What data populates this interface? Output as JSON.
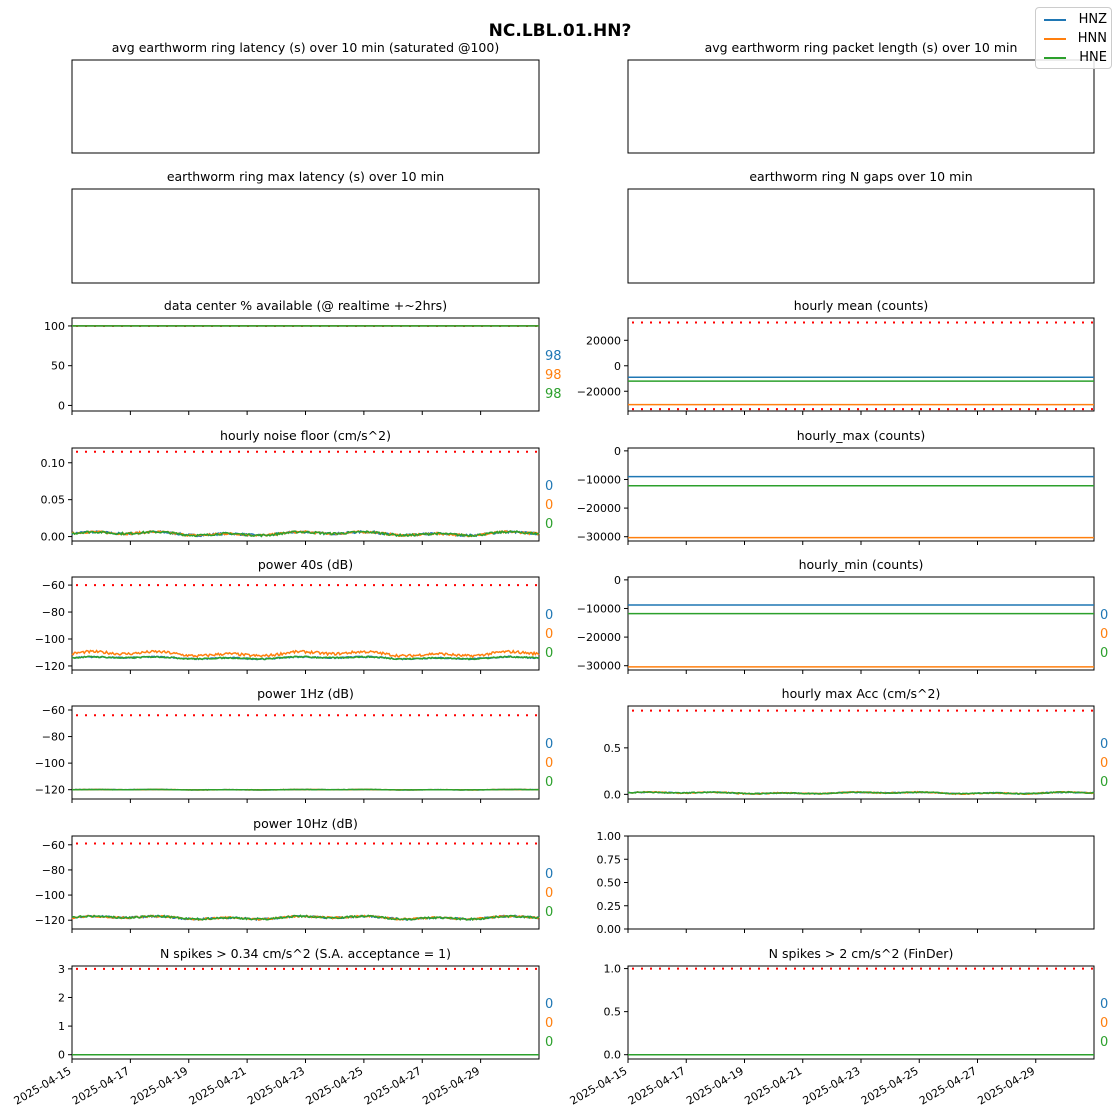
{
  "suptitle": "NC.LBL.01.HN?",
  "legend": {
    "items": [
      "HNZ",
      "HNN",
      "HNE"
    ]
  },
  "colors": {
    "HNZ": "#1f77b4",
    "HNN": "#ff7f0e",
    "HNE": "#2ca02c",
    "threshold": "#ff0000"
  },
  "chart_data": [
    {
      "type": "line",
      "title": "avg earthworm ring latency (s)   over 10 min (saturated @100)",
      "empty": true,
      "series": []
    },
    {
      "type": "line",
      "title": "avg earthworm ring packet length (s)   over 10 min",
      "empty": true,
      "series": []
    },
    {
      "type": "line",
      "title": "earthworm ring max latency (s)   over 10 min",
      "empty": true,
      "series": []
    },
    {
      "type": "line",
      "title": "earthworm ring N gaps   over 10 min",
      "empty": true,
      "series": []
    },
    {
      "type": "line",
      "title": "data center % available (@ realtime +~2hrs)",
      "ylim": [
        -7,
        110
      ],
      "yticks": [
        "0",
        "50",
        "100"
      ],
      "yticks_values": [
        0,
        50,
        100
      ],
      "thresholds": [
        100
      ],
      "series": [
        {
          "name": "HNZ",
          "level": 100,
          "noise": 0
        },
        {
          "name": "HNN",
          "level": 100,
          "noise": 0
        },
        {
          "name": "HNE",
          "level": 100,
          "noise": 0
        }
      ],
      "side_labels": [
        "98",
        "98",
        "98"
      ]
    },
    {
      "type": "line",
      "title": "hourly mean (counts)",
      "ylim": [
        -35500,
        37500
      ],
      "yticks": [
        "−20000",
        "0",
        "20000"
      ],
      "yticks_values": [
        -20000,
        0,
        20000
      ],
      "thresholds": [
        34000,
        -34000
      ],
      "series": [
        {
          "name": "HNZ",
          "level": -9000,
          "noise": 0
        },
        {
          "name": "HNN",
          "level": -30500,
          "noise": 0
        },
        {
          "name": "HNE",
          "level": -12000,
          "noise": 0
        }
      ],
      "side_labels": []
    },
    {
      "type": "line",
      "title": "hourly noise floor (cm/s^2)",
      "ylim": [
        -0.006,
        0.12
      ],
      "yticks": [
        "0.00",
        "0.05",
        "0.10"
      ],
      "yticks_values": [
        0,
        0.05,
        0.1
      ],
      "thresholds": [
        0.115
      ],
      "series": [
        {
          "name": "HNZ",
          "level": 0.004,
          "noise": 0.003
        },
        {
          "name": "HNN",
          "level": 0.004,
          "noise": 0.003
        },
        {
          "name": "HNE",
          "level": 0.004,
          "noise": 0.003
        }
      ],
      "side_labels": [
        "0",
        "0",
        "0"
      ]
    },
    {
      "type": "line",
      "title": "hourly_max (counts)",
      "ylim": [
        -31500,
        1000
      ],
      "yticks": [
        "−30000",
        "−20000",
        "−10000",
        "0"
      ],
      "yticks_values": [
        -30000,
        -20000,
        -10000,
        0
      ],
      "thresholds": [],
      "series": [
        {
          "name": "HNZ",
          "level": -9000,
          "noise": 0
        },
        {
          "name": "HNN",
          "level": -30300,
          "noise": 0
        },
        {
          "name": "HNE",
          "level": -12200,
          "noise": 0
        }
      ],
      "side_labels": []
    },
    {
      "type": "line",
      "title": "power 40s (dB)",
      "ylim": [
        -123,
        -54
      ],
      "yticks": [
        "−120",
        "−100",
        "−80",
        "−60"
      ],
      "yticks_values": [
        -120,
        -100,
        -80,
        -60
      ],
      "thresholds": [
        -60
      ],
      "series": [
        {
          "name": "HNZ",
          "level": -114,
          "noise": 1
        },
        {
          "name": "HNN",
          "level": -111,
          "noise": 2
        },
        {
          "name": "HNE",
          "level": -114,
          "noise": 1
        }
      ],
      "side_labels": [
        "0",
        "0",
        "0"
      ]
    },
    {
      "type": "line",
      "title": "hourly_min (counts)",
      "ylim": [
        -31500,
        1000
      ],
      "yticks": [
        "−30000",
        "−20000",
        "−10000",
        "0"
      ],
      "yticks_values": [
        -30000,
        -20000,
        -10000,
        0
      ],
      "thresholds": [],
      "series": [
        {
          "name": "HNZ",
          "level": -8800,
          "noise": 0
        },
        {
          "name": "HNN",
          "level": -30400,
          "noise": 0
        },
        {
          "name": "HNE",
          "level": -11800,
          "noise": 0
        }
      ],
      "side_labels": [
        "0",
        "0",
        "0"
      ]
    },
    {
      "type": "line",
      "title": "power 1Hz (dB)",
      "ylim": [
        -127,
        -57
      ],
      "yticks": [
        "−120",
        "−100",
        "−80",
        "−60"
      ],
      "yticks_values": [
        -120,
        -100,
        -80,
        -60
      ],
      "thresholds": [
        -64
      ],
      "series": [
        {
          "name": "HNZ",
          "level": -120,
          "noise": 0.2
        },
        {
          "name": "HNN",
          "level": -120,
          "noise": 0.2
        },
        {
          "name": "HNE",
          "level": -120,
          "noise": 0.2
        }
      ],
      "side_labels": [
        "0",
        "0",
        "0"
      ]
    },
    {
      "type": "line",
      "title": "hourly max Acc (cm/s^2)",
      "ylim": [
        -0.05,
        0.95
      ],
      "yticks": [
        "0.0",
        "0.5"
      ],
      "yticks_values": [
        0,
        0.5
      ],
      "thresholds": [
        0.9
      ],
      "series": [
        {
          "name": "HNZ",
          "level": 0.015,
          "noise": 0.01
        },
        {
          "name": "HNN",
          "level": 0.015,
          "noise": 0.012
        },
        {
          "name": "HNE",
          "level": 0.015,
          "noise": 0.01
        }
      ],
      "side_labels": [
        "0",
        "0",
        "0"
      ]
    },
    {
      "type": "line",
      "title": "power 10Hz (dB)",
      "ylim": [
        -127,
        -53
      ],
      "yticks": [
        "−120",
        "−100",
        "−80",
        "−60"
      ],
      "yticks_values": [
        -120,
        -100,
        -80,
        -60
      ],
      "thresholds": [
        -59
      ],
      "series": [
        {
          "name": "HNZ",
          "level": -118,
          "noise": 1.5
        },
        {
          "name": "HNN",
          "level": -118,
          "noise": 1.5
        },
        {
          "name": "HNE",
          "level": -118,
          "noise": 1.5
        }
      ],
      "side_labels": [
        "0",
        "0",
        "0"
      ]
    },
    {
      "type": "line",
      "title": "",
      "ylim": [
        0,
        1
      ],
      "yticks": [
        "0.00",
        "0.25",
        "0.50",
        "0.75",
        "1.00"
      ],
      "yticks_values": [
        0,
        0.25,
        0.5,
        0.75,
        1.0
      ],
      "thresholds": [],
      "series": [],
      "side_labels": []
    },
    {
      "type": "line",
      "title": "N spikes > 0.34 cm/s^2 (S.A. acceptance = 1)",
      "ylim": [
        -0.15,
        3.1
      ],
      "yticks": [
        "0",
        "1",
        "2",
        "3"
      ],
      "yticks_values": [
        0,
        1,
        2,
        3
      ],
      "thresholds": [
        3
      ],
      "series": [
        {
          "name": "HNZ",
          "level": 0,
          "noise": 0
        },
        {
          "name": "HNN",
          "level": 0,
          "noise": 0
        },
        {
          "name": "HNE",
          "level": 0,
          "noise": 0
        }
      ],
      "side_labels": [
        "0",
        "0",
        "0"
      ]
    },
    {
      "type": "line",
      "title": "N spikes > 2 cm/s^2 (FinDer)",
      "ylim": [
        -0.05,
        1.03
      ],
      "yticks": [
        "0.0",
        "0.5",
        "1.0"
      ],
      "yticks_values": [
        0,
        0.5,
        1.0
      ],
      "thresholds": [
        1.0
      ],
      "series": [
        {
          "name": "HNZ",
          "level": 0,
          "noise": 0
        },
        {
          "name": "HNN",
          "level": 0,
          "noise": 0
        },
        {
          "name": "HNE",
          "level": 0,
          "noise": 0
        }
      ],
      "side_labels": [
        "0",
        "0",
        "0"
      ]
    }
  ],
  "x_axis": {
    "range": [
      "2025-04-15",
      "2025-05-01"
    ],
    "ticks": [
      "2025-04-15",
      "2025-04-17",
      "2025-04-19",
      "2025-04-21",
      "2025-04-23",
      "2025-04-25",
      "2025-04-27",
      "2025-04-29"
    ]
  }
}
